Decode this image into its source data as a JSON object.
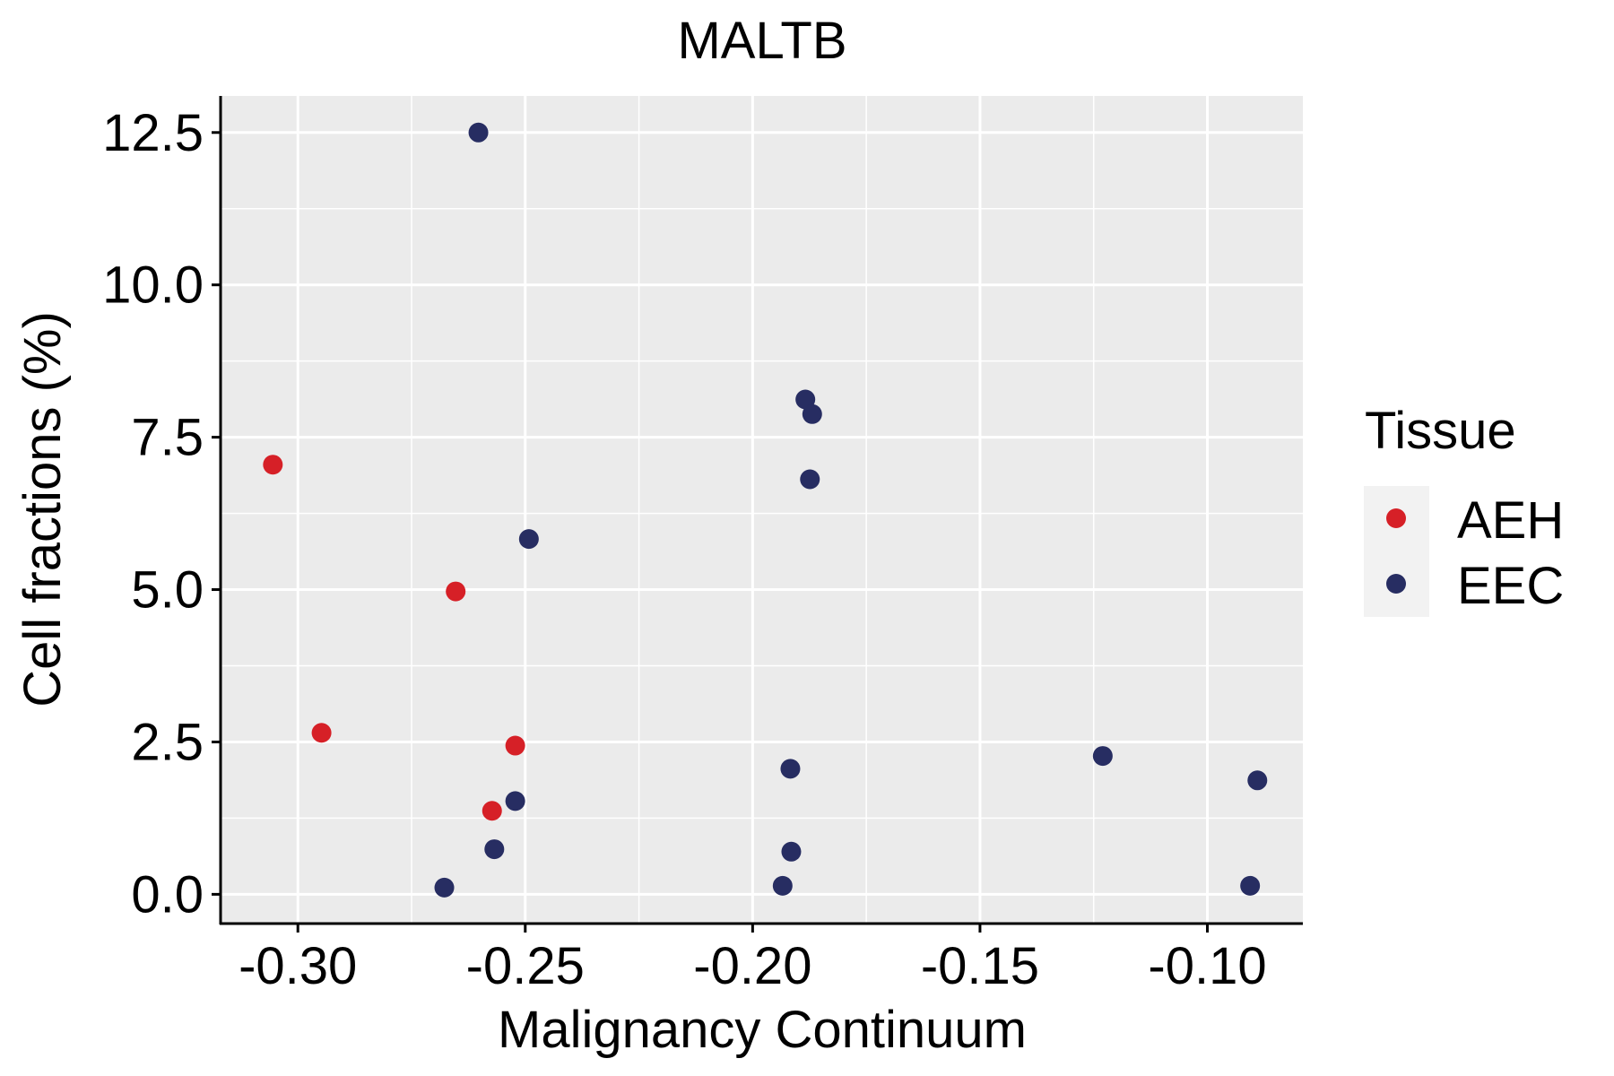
{
  "chart_data": {
    "type": "scatter",
    "title": "MALTB",
    "xlabel": "Malignancy Continuum",
    "ylabel": "Cell fractions (%)",
    "xlim": [
      -0.317,
      -0.079
    ],
    "ylim": [
      -0.48,
      13.1
    ],
    "x_ticks": [
      -0.3,
      -0.25,
      -0.2,
      -0.15,
      -0.1
    ],
    "x_tick_labels": [
      "-0.30",
      "-0.25",
      "-0.20",
      "-0.15",
      "-0.10"
    ],
    "y_ticks": [
      0.0,
      2.5,
      5.0,
      7.5,
      10.0,
      12.5
    ],
    "y_tick_labels": [
      "0.0",
      "2.5",
      "5.0",
      "7.5",
      "10.0",
      "12.5"
    ],
    "grid": true,
    "legend": {
      "title": "Tissue",
      "position": "right",
      "entries": [
        {
          "name": "AEH",
          "color": "#d62027"
        },
        {
          "name": "EEC",
          "color": "#272d62"
        }
      ]
    },
    "series": [
      {
        "name": "AEH",
        "color": "#d62027",
        "points": [
          {
            "x": -0.3055,
            "y": 7.05
          },
          {
            "x": -0.2948,
            "y": 2.65
          },
          {
            "x": -0.2653,
            "y": 4.97
          },
          {
            "x": -0.2573,
            "y": 1.37
          },
          {
            "x": -0.2522,
            "y": 2.44
          }
        ]
      },
      {
        "name": "EEC",
        "color": "#272d62",
        "points": [
          {
            "x": -0.2603,
            "y": 12.5
          },
          {
            "x": -0.2492,
            "y": 5.83
          },
          {
            "x": -0.2678,
            "y": 0.11
          },
          {
            "x": -0.2568,
            "y": 0.74
          },
          {
            "x": -0.2522,
            "y": 1.53
          },
          {
            "x": -0.1884,
            "y": 8.12
          },
          {
            "x": -0.1869,
            "y": 7.88
          },
          {
            "x": -0.1874,
            "y": 6.81
          },
          {
            "x": -0.1917,
            "y": 2.06
          },
          {
            "x": -0.1915,
            "y": 0.7
          },
          {
            "x": -0.1934,
            "y": 0.14
          },
          {
            "x": -0.123,
            "y": 2.27
          },
          {
            "x": -0.089,
            "y": 1.87
          },
          {
            "x": -0.0906,
            "y": 0.14
          }
        ]
      }
    ]
  }
}
